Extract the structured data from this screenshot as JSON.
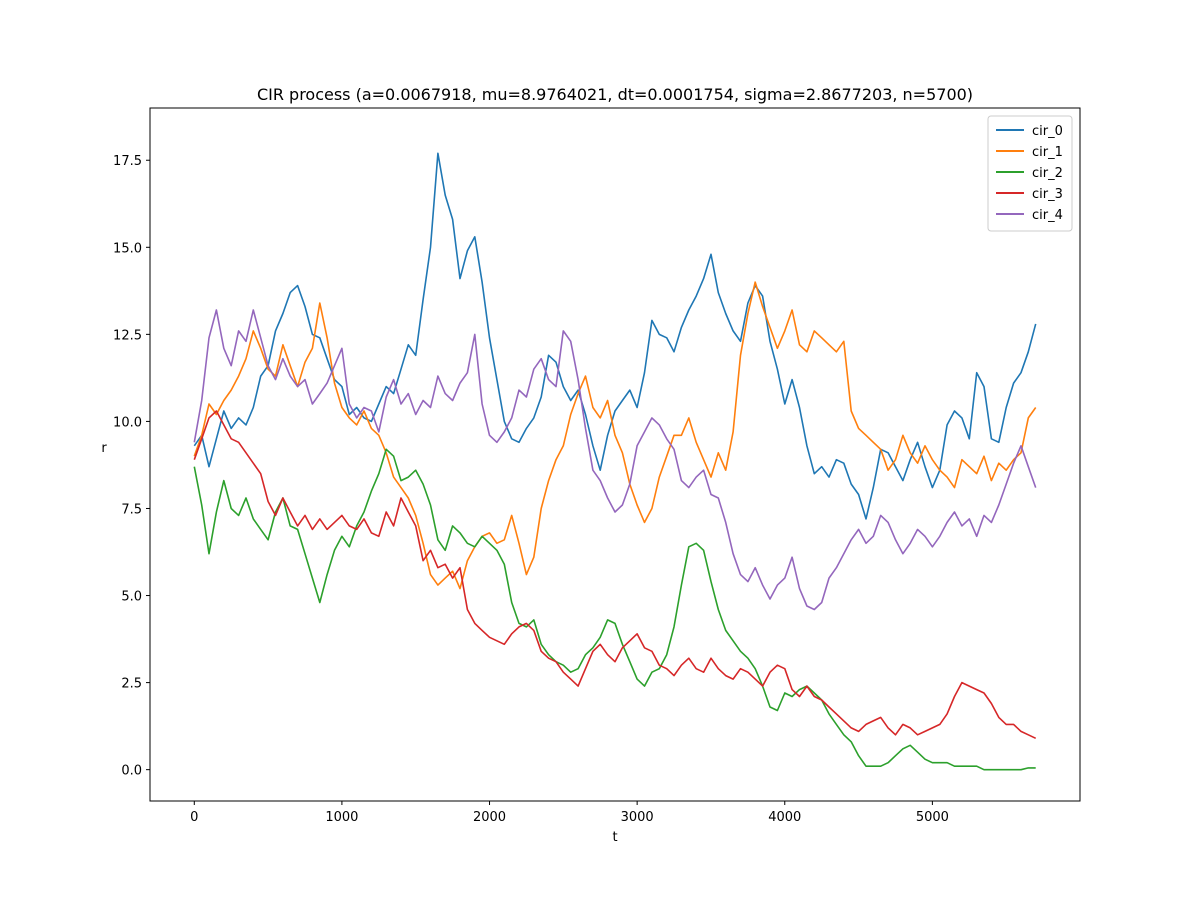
{
  "chart_data": {
    "type": "line",
    "title": "CIR process (a=0.0067918, mu=8.9764021, dt=0.0001754, sigma=2.8677203, n=5700)",
    "xlabel": "t",
    "ylabel": "r",
    "xlim": [
      -300,
      6000
    ],
    "ylim": [
      -0.9,
      19.0
    ],
    "xticks": [
      0,
      1000,
      2000,
      3000,
      4000,
      5000
    ],
    "xtick_labels": [
      "0",
      "1000",
      "2000",
      "3000",
      "4000",
      "5000"
    ],
    "yticks": [
      0.0,
      2.5,
      5.0,
      7.5,
      10.0,
      12.5,
      15.0,
      17.5
    ],
    "ytick_labels": [
      "0.0",
      "2.5",
      "5.0",
      "7.5",
      "10.0",
      "12.5",
      "15.0",
      "17.5"
    ],
    "grid": false,
    "legend_position": "top-right",
    "series": [
      {
        "name": "cir_0",
        "color": "#1f77b4",
        "x": [
          0,
          50,
          100,
          150,
          200,
          250,
          300,
          350,
          400,
          450,
          500,
          550,
          600,
          650,
          700,
          750,
          800,
          850,
          900,
          950,
          1000,
          1050,
          1100,
          1150,
          1200,
          1250,
          1300,
          1350,
          1400,
          1450,
          1500,
          1550,
          1600,
          1650,
          1700,
          1750,
          1800,
          1850,
          1900,
          1950,
          2000,
          2050,
          2100,
          2150,
          2200,
          2250,
          2300,
          2350,
          2400,
          2450,
          2500,
          2550,
          2600,
          2650,
          2700,
          2750,
          2800,
          2850,
          2900,
          2950,
          3000,
          3050,
          3100,
          3150,
          3200,
          3250,
          3300,
          3350,
          3400,
          3450,
          3500,
          3550,
          3600,
          3650,
          3700,
          3750,
          3800,
          3850,
          3900,
          3950,
          4000,
          4050,
          4100,
          4150,
          4200,
          4250,
          4300,
          4350,
          4400,
          4450,
          4500,
          4550,
          4600,
          4650,
          4700,
          4750,
          4800,
          4850,
          4900,
          4950,
          5000,
          5050,
          5100,
          5150,
          5200,
          5250,
          5300,
          5350,
          5400,
          5450,
          5500,
          5550,
          5600,
          5650,
          5700
        ],
        "y": [
          9.3,
          9.6,
          8.7,
          9.5,
          10.3,
          9.8,
          10.1,
          9.9,
          10.4,
          11.3,
          11.6,
          12.6,
          13.1,
          13.7,
          13.9,
          13.3,
          12.5,
          12.4,
          11.8,
          11.2,
          11.0,
          10.2,
          10.4,
          10.1,
          10.0,
          10.5,
          11.0,
          10.8,
          11.5,
          12.2,
          11.9,
          13.5,
          15.0,
          17.7,
          16.5,
          15.8,
          14.1,
          14.9,
          15.3,
          14.0,
          12.4,
          11.2,
          10.0,
          9.5,
          9.4,
          9.8,
          10.1,
          10.7,
          11.9,
          11.7,
          11.0,
          10.6,
          10.9,
          10.2,
          9.3,
          8.6,
          9.6,
          10.3,
          10.6,
          10.9,
          10.4,
          11.4,
          12.9,
          12.5,
          12.4,
          12.0,
          12.7,
          13.2,
          13.6,
          14.1,
          14.8,
          13.7,
          13.1,
          12.6,
          12.3,
          13.4,
          13.9,
          13.6,
          12.3,
          11.5,
          10.5,
          11.2,
          10.4,
          9.3,
          8.5,
          8.7,
          8.4,
          8.9,
          8.8,
          8.2,
          7.9,
          7.2,
          8.1,
          9.2,
          9.1,
          8.7,
          8.3,
          8.9,
          9.4,
          8.7,
          8.1,
          8.6,
          9.9,
          10.3,
          10.1,
          9.5,
          11.4,
          11.0,
          9.5,
          9.4,
          10.4,
          11.1,
          11.4,
          12.0,
          12.8
        ]
      },
      {
        "name": "cir_1",
        "color": "#ff7f0e",
        "x": [
          0,
          50,
          100,
          150,
          200,
          250,
          300,
          350,
          400,
          450,
          500,
          550,
          600,
          650,
          700,
          750,
          800,
          850,
          900,
          950,
          1000,
          1050,
          1100,
          1150,
          1200,
          1250,
          1300,
          1350,
          1400,
          1450,
          1500,
          1550,
          1600,
          1650,
          1700,
          1750,
          1800,
          1850,
          1900,
          1950,
          2000,
          2050,
          2100,
          2150,
          2200,
          2250,
          2300,
          2350,
          2400,
          2450,
          2500,
          2550,
          2600,
          2650,
          2700,
          2750,
          2800,
          2850,
          2900,
          2950,
          3000,
          3050,
          3100,
          3150,
          3200,
          3250,
          3300,
          3350,
          3400,
          3450,
          3500,
          3550,
          3600,
          3650,
          3700,
          3750,
          3800,
          3850,
          3900,
          3950,
          4000,
          4050,
          4100,
          4150,
          4200,
          4250,
          4300,
          4350,
          4400,
          4450,
          4500,
          4550,
          4600,
          4650,
          4700,
          4750,
          4800,
          4850,
          4900,
          4950,
          5000,
          5050,
          5100,
          5150,
          5200,
          5250,
          5300,
          5350,
          5400,
          5450,
          5500,
          5550,
          5600,
          5650,
          5700
        ],
        "y": [
          9.0,
          9.6,
          10.5,
          10.2,
          10.6,
          10.9,
          11.3,
          11.8,
          12.6,
          12.1,
          11.5,
          11.3,
          12.2,
          11.6,
          11.0,
          11.7,
          12.1,
          13.4,
          12.4,
          11.1,
          10.4,
          10.1,
          9.9,
          10.3,
          9.8,
          9.6,
          9.1,
          8.4,
          8.1,
          7.8,
          7.3,
          6.5,
          5.6,
          5.3,
          5.5,
          5.7,
          5.2,
          6.0,
          6.4,
          6.7,
          6.8,
          6.5,
          6.6,
          7.3,
          6.5,
          5.6,
          6.1,
          7.5,
          8.3,
          8.9,
          9.3,
          10.2,
          10.8,
          11.3,
          10.4,
          10.1,
          10.6,
          9.6,
          9.1,
          8.2,
          7.6,
          7.1,
          7.5,
          8.4,
          9.0,
          9.6,
          9.6,
          10.1,
          9.4,
          8.9,
          8.4,
          9.1,
          8.6,
          9.7,
          11.9,
          13.1,
          14.0,
          13.3,
          12.7,
          12.1,
          12.6,
          13.2,
          12.2,
          12.0,
          12.6,
          12.4,
          12.2,
          12.0,
          12.3,
          10.3,
          9.8,
          9.6,
          9.4,
          9.2,
          8.6,
          8.9,
          9.6,
          9.1,
          8.8,
          9.3,
          8.9,
          8.6,
          8.4,
          8.1,
          8.9,
          8.7,
          8.5,
          9.0,
          8.3,
          8.8,
          8.6,
          8.9,
          9.1,
          10.1,
          10.4
        ]
      },
      {
        "name": "cir_2",
        "color": "#2ca02c",
        "x": [
          0,
          50,
          100,
          150,
          200,
          250,
          300,
          350,
          400,
          450,
          500,
          550,
          600,
          650,
          700,
          750,
          800,
          850,
          900,
          950,
          1000,
          1050,
          1100,
          1150,
          1200,
          1250,
          1300,
          1350,
          1400,
          1450,
          1500,
          1550,
          1600,
          1650,
          1700,
          1750,
          1800,
          1850,
          1900,
          1950,
          2000,
          2050,
          2100,
          2150,
          2200,
          2250,
          2300,
          2350,
          2400,
          2450,
          2500,
          2550,
          2600,
          2650,
          2700,
          2750,
          2800,
          2850,
          2900,
          2950,
          3000,
          3050,
          3100,
          3150,
          3200,
          3250,
          3300,
          3350,
          3400,
          3450,
          3500,
          3550,
          3600,
          3650,
          3700,
          3750,
          3800,
          3850,
          3900,
          3950,
          4000,
          4050,
          4100,
          4150,
          4200,
          4250,
          4300,
          4350,
          4400,
          4450,
          4500,
          4550,
          4600,
          4650,
          4700,
          4750,
          4800,
          4850,
          4900,
          4950,
          5000,
          5050,
          5100,
          5150,
          5200,
          5250,
          5300,
          5350,
          5400,
          5450,
          5500,
          5550,
          5600,
          5650,
          5700
        ],
        "y": [
          8.7,
          7.6,
          6.2,
          7.4,
          8.3,
          7.5,
          7.3,
          7.8,
          7.2,
          6.9,
          6.6,
          7.4,
          7.8,
          7.0,
          6.9,
          6.2,
          5.5,
          4.8,
          5.6,
          6.3,
          6.7,
          6.4,
          7.0,
          7.4,
          8.0,
          8.5,
          9.2,
          9.0,
          8.3,
          8.4,
          8.6,
          8.2,
          7.6,
          6.6,
          6.3,
          7.0,
          6.8,
          6.5,
          6.4,
          6.7,
          6.5,
          6.3,
          5.9,
          4.8,
          4.2,
          4.1,
          4.3,
          3.6,
          3.3,
          3.1,
          3.0,
          2.8,
          2.9,
          3.3,
          3.5,
          3.8,
          4.3,
          4.2,
          3.6,
          3.1,
          2.6,
          2.4,
          2.8,
          2.9,
          3.3,
          4.1,
          5.3,
          6.4,
          6.5,
          6.3,
          5.4,
          4.6,
          4.0,
          3.7,
          3.4,
          3.2,
          2.9,
          2.4,
          1.8,
          1.7,
          2.2,
          2.1,
          2.3,
          2.4,
          2.2,
          2.0,
          1.6,
          1.3,
          1.0,
          0.8,
          0.4,
          0.1,
          0.1,
          0.1,
          0.2,
          0.4,
          0.6,
          0.7,
          0.5,
          0.3,
          0.2,
          0.2,
          0.2,
          0.1,
          0.1,
          0.1,
          0.1,
          0.0,
          0.0,
          0.0,
          0.0,
          0.0,
          0.0,
          0.05,
          0.05
        ]
      },
      {
        "name": "cir_3",
        "color": "#d62728",
        "x": [
          0,
          50,
          100,
          150,
          200,
          250,
          300,
          350,
          400,
          450,
          500,
          550,
          600,
          650,
          700,
          750,
          800,
          850,
          900,
          950,
          1000,
          1050,
          1100,
          1150,
          1200,
          1250,
          1300,
          1350,
          1400,
          1450,
          1500,
          1550,
          1600,
          1650,
          1700,
          1750,
          1800,
          1850,
          1900,
          1950,
          2000,
          2050,
          2100,
          2150,
          2200,
          2250,
          2300,
          2350,
          2400,
          2450,
          2500,
          2550,
          2600,
          2650,
          2700,
          2750,
          2800,
          2850,
          2900,
          2950,
          3000,
          3050,
          3100,
          3150,
          3200,
          3250,
          3300,
          3350,
          3400,
          3450,
          3500,
          3550,
          3600,
          3650,
          3700,
          3750,
          3800,
          3850,
          3900,
          3950,
          4000,
          4050,
          4100,
          4150,
          4200,
          4250,
          4300,
          4350,
          4400,
          4450,
          4500,
          4550,
          4600,
          4650,
          4700,
          4750,
          4800,
          4850,
          4900,
          4950,
          5000,
          5050,
          5100,
          5150,
          5200,
          5250,
          5300,
          5350,
          5400,
          5450,
          5500,
          5550,
          5600,
          5650,
          5700
        ],
        "y": [
          8.9,
          9.5,
          10.1,
          10.3,
          9.9,
          9.5,
          9.4,
          9.1,
          8.8,
          8.5,
          7.7,
          7.3,
          7.8,
          7.4,
          7.0,
          7.3,
          6.9,
          7.2,
          6.9,
          7.1,
          7.3,
          7.0,
          6.9,
          7.2,
          6.8,
          6.7,
          7.4,
          7.0,
          7.8,
          7.4,
          7.0,
          6.0,
          6.3,
          5.8,
          5.9,
          5.5,
          5.8,
          4.6,
          4.2,
          4.0,
          3.8,
          3.7,
          3.6,
          3.9,
          4.1,
          4.2,
          4.0,
          3.4,
          3.2,
          3.1,
          2.8,
          2.6,
          2.4,
          2.9,
          3.4,
          3.6,
          3.3,
          3.1,
          3.5,
          3.7,
          3.9,
          3.5,
          3.4,
          3.0,
          2.9,
          2.7,
          3.0,
          3.2,
          2.9,
          2.8,
          3.2,
          2.9,
          2.7,
          2.6,
          2.9,
          2.8,
          2.6,
          2.4,
          2.8,
          3.0,
          2.9,
          2.3,
          2.1,
          2.4,
          2.1,
          2.0,
          1.8,
          1.6,
          1.4,
          1.2,
          1.1,
          1.3,
          1.4,
          1.5,
          1.2,
          1.0,
          1.3,
          1.2,
          1.0,
          1.1,
          1.2,
          1.3,
          1.6,
          2.1,
          2.5,
          2.4,
          2.3,
          2.2,
          1.9,
          1.5,
          1.3,
          1.3,
          1.1,
          1.0,
          0.9
        ]
      },
      {
        "name": "cir_4",
        "color": "#9467bd",
        "x": [
          0,
          50,
          100,
          150,
          200,
          250,
          300,
          350,
          400,
          450,
          500,
          550,
          600,
          650,
          700,
          750,
          800,
          850,
          900,
          950,
          1000,
          1050,
          1100,
          1150,
          1200,
          1250,
          1300,
          1350,
          1400,
          1450,
          1500,
          1550,
          1600,
          1650,
          1700,
          1750,
          1800,
          1850,
          1900,
          1950,
          2000,
          2050,
          2100,
          2150,
          2200,
          2250,
          2300,
          2350,
          2400,
          2450,
          2500,
          2550,
          2600,
          2650,
          2700,
          2750,
          2800,
          2850,
          2900,
          2950,
          3000,
          3050,
          3100,
          3150,
          3200,
          3250,
          3300,
          3350,
          3400,
          3450,
          3500,
          3550,
          3600,
          3650,
          3700,
          3750,
          3800,
          3850,
          3900,
          3950,
          4000,
          4050,
          4100,
          4150,
          4200,
          4250,
          4300,
          4350,
          4400,
          4450,
          4500,
          4550,
          4600,
          4650,
          4700,
          4750,
          4800,
          4850,
          4900,
          4950,
          5000,
          5050,
          5100,
          5150,
          5200,
          5250,
          5300,
          5350,
          5400,
          5450,
          5500,
          5550,
          5600,
          5650,
          5700
        ],
        "y": [
          9.4,
          10.6,
          12.4,
          13.2,
          12.1,
          11.6,
          12.6,
          12.3,
          13.2,
          12.4,
          11.6,
          11.2,
          11.8,
          11.3,
          11.0,
          11.2,
          10.5,
          10.8,
          11.1,
          11.6,
          12.1,
          10.5,
          10.1,
          10.4,
          10.3,
          9.7,
          10.7,
          11.2,
          10.5,
          10.8,
          10.2,
          10.6,
          10.4,
          11.3,
          10.8,
          10.6,
          11.1,
          11.4,
          12.5,
          10.5,
          9.6,
          9.4,
          9.7,
          10.1,
          10.9,
          10.7,
          11.5,
          11.8,
          11.2,
          11.0,
          12.6,
          12.3,
          11.2,
          9.8,
          8.6,
          8.3,
          7.8,
          7.4,
          7.6,
          8.2,
          9.3,
          9.7,
          10.1,
          9.9,
          9.5,
          9.2,
          8.3,
          8.1,
          8.4,
          8.6,
          7.9,
          7.8,
          7.1,
          6.2,
          5.6,
          5.4,
          5.8,
          5.3,
          4.9,
          5.3,
          5.5,
          6.1,
          5.2,
          4.7,
          4.6,
          4.8,
          5.5,
          5.8,
          6.2,
          6.6,
          6.9,
          6.5,
          6.7,
          7.3,
          7.1,
          6.6,
          6.2,
          6.5,
          6.9,
          6.7,
          6.4,
          6.7,
          7.1,
          7.4,
          7.0,
          7.2,
          6.7,
          7.3,
          7.1,
          7.6,
          8.2,
          8.8,
          9.3,
          8.7,
          8.1
        ]
      }
    ]
  }
}
